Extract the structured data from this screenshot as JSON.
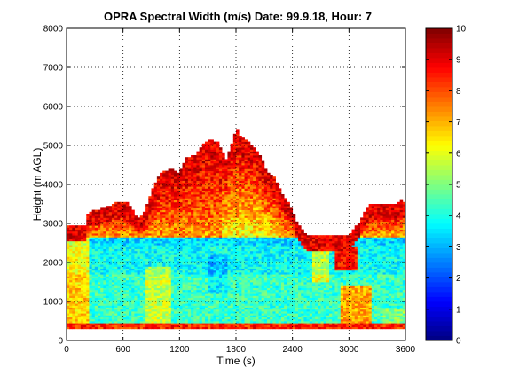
{
  "chart_data": {
    "type": "heatmap",
    "title": "OPRA Spectral Width (m/s)  Date: 99.9.18, Hour: 7",
    "xlabel": "Time (s)",
    "ylabel": "Height (m AGL)",
    "xlim": [
      0,
      3600
    ],
    "ylim": [
      0,
      8000
    ],
    "x_ticks": [
      0,
      600,
      1200,
      1800,
      2400,
      3000,
      3600
    ],
    "y_ticks": [
      0,
      1000,
      2000,
      3000,
      4000,
      5000,
      6000,
      7000,
      8000
    ],
    "colorbar": {
      "range": [
        0,
        10
      ],
      "ticks": [
        0,
        1,
        2,
        3,
        4,
        5,
        6,
        7,
        8,
        9,
        10
      ],
      "colormap": "jet"
    },
    "grid": true,
    "echo_top_profile": {
      "x": [
        0,
        200,
        230,
        400,
        550,
        650,
        750,
        820,
        900,
        1000,
        1120,
        1200,
        1280,
        1360,
        1450,
        1520,
        1600,
        1700,
        1750,
        1800,
        1860,
        1950,
        2050,
        2120,
        2200,
        2300,
        2380,
        2450,
        2550,
        2700,
        3000,
        3100,
        3180,
        3230,
        3300,
        3500,
        3560,
        3600
      ],
      "y": [
        2950,
        2950,
        3300,
        3400,
        3550,
        3550,
        3150,
        3250,
        3800,
        4300,
        4400,
        4300,
        4700,
        4750,
        5050,
        5150,
        5100,
        4650,
        5000,
        5450,
        5200,
        5050,
        4800,
        4350,
        4200,
        3750,
        3450,
        3000,
        2700,
        2700,
        2700,
        3000,
        3350,
        3500,
        3500,
        3500,
        3600,
        3500
      ]
    }
  }
}
